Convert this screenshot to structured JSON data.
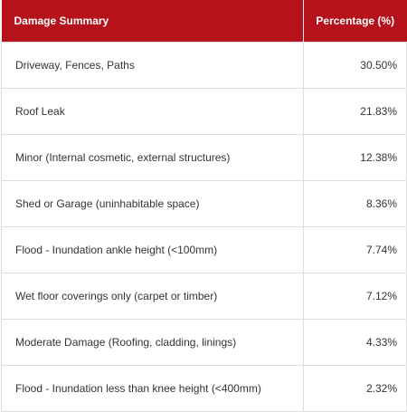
{
  "table": {
    "headers": {
      "category": "Damage Summary",
      "percentage": "Percentage (%)"
    },
    "header_color": "#b5121b",
    "rows": [
      {
        "category": "Driveway, Fences, Paths",
        "percentage": "30.50%"
      },
      {
        "category": "Roof Leak",
        "percentage": "21.83%"
      },
      {
        "category": "Minor (Internal cosmetic, external structures)",
        "percentage": "12.38%"
      },
      {
        "category": "Shed or Garage (uninhabitable space)",
        "percentage": "8.36%"
      },
      {
        "category": "Flood - Inundation ankle height (<100mm)",
        "percentage": "7.74%"
      },
      {
        "category": "Wet floor coverings only (carpet or timber)",
        "percentage": "7.12%"
      },
      {
        "category": "Moderate Damage (Roofing, cladding, linings)",
        "percentage": "4.33%"
      },
      {
        "category": "Flood - Inundation less than knee height (<400mm)",
        "percentage": "2.32%"
      }
    ]
  }
}
